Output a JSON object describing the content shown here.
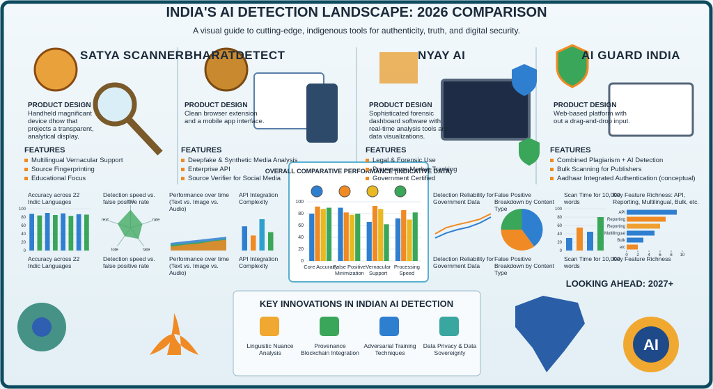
{
  "header": {
    "title": "INDIA'S AI DETECTION LANDSCAPE: 2026 COMPARISON",
    "subtitle": "A visual guide to cutting-edge, indigenous tools for authenticity, truth, and digital security."
  },
  "products": [
    {
      "name": "SATYA SCANNER",
      "design_label": "PRODUCT DESIGN",
      "design": "Handheld magnificant device dhow that projects a transparent, analytical display.",
      "features_label": "FEATURES",
      "features": [
        "Multilingual Vernacular Support",
        "Source Fingerprinting",
        "Educational Focus"
      ]
    },
    {
      "name": "BHARATDETECT",
      "design_label": "PRODUCT DESIGN",
      "design": "Clean browser extension and a mobile app interface.",
      "features_label": "FEATURES",
      "features": [
        "Deepfake & Synthetic Media Analysis",
        "Enterprise API",
        "Source Verifier for Social Media"
      ]
    },
    {
      "name": "NYAY AI",
      "design_label": "PRODUCT DESIGN",
      "design": "Sophisticated forensic dashboard software with real-time analysis tools and data visualizations.",
      "features_label": "FEATURES",
      "features": [
        "Legal & Forensic Use",
        "Provenance Marker Tracking",
        "Government Certified"
      ]
    },
    {
      "name": "AI GUARD INDIA",
      "design_label": "PRODUCT DESIGN",
      "design": "Web-based platform with out a drag-and-drop input.",
      "features_label": "FEATURES",
      "features": [
        "Combined Plagiarism + AI Detection",
        "Bulk Scanning for Publishers",
        "Aadhaar Integrated Authentication (conceptual)"
      ]
    }
  ],
  "mini_charts": [
    {
      "type": "bar",
      "title": "Accuracy across 22 Indic Languages",
      "caption": "Accuracy across 22 Indic Languages",
      "values": [
        88,
        84,
        90,
        85,
        89,
        83,
        87,
        86
      ],
      "colors": [
        "#2f7fd0",
        "#3aa65a"
      ],
      "ylim": [
        0,
        100
      ],
      "yticks": [
        0,
        20,
        40,
        60,
        80,
        100
      ]
    },
    {
      "type": "radar",
      "title": "Detection speed vs. false positive rate",
      "caption": "Detection speed vs. false positive rate",
      "axes": [
        "rost",
        "rate",
        "rate",
        "lote",
        "rext"
      ],
      "values": [
        0.8,
        0.55,
        0.6,
        0.45,
        0.6
      ],
      "color": "#3aa65a"
    },
    {
      "type": "area",
      "title": "Performance over time (Text vs. Image vs. Audio)",
      "caption": "Performance over time (Text vs. Image vs. Audio)",
      "ylim": [
        0,
        100
      ],
      "series": [
        {
          "color": "#2f7fd0",
          "values": [
            20,
            24,
            28,
            32,
            36
          ]
        },
        {
          "color": "#3aa65a",
          "values": [
            15,
            18,
            22,
            26,
            30
          ]
        },
        {
          "color": "#f08a24",
          "values": [
            10,
            15,
            18,
            24,
            28
          ]
        }
      ]
    },
    {
      "type": "bar",
      "title": "API Integration Complexity",
      "caption": "API Integration Complexity",
      "values": [
        58,
        36,
        75,
        44
      ],
      "colors": [
        "#2f7fd0",
        "#f08a24",
        "#2f9fd0",
        "#3aa65a"
      ],
      "ylim": [
        0,
        100
      ]
    },
    {
      "type": "line",
      "title": "Detection Reliability for Government Data",
      "caption": "Detection Reliability for Government Data",
      "ylim": [
        0,
        100
      ],
      "series": [
        {
          "color": "#f08a24",
          "values": [
            40,
            55,
            62,
            68,
            75,
            88
          ]
        },
        {
          "color": "#2f7fd0",
          "values": [
            30,
            42,
            50,
            56,
            66,
            80
          ]
        }
      ]
    },
    {
      "type": "pie",
      "title": "False Positive Breakdown by Content Type",
      "caption": "False Positive Breakdown by Content Type",
      "values": [
        40,
        35,
        25
      ],
      "colors": [
        "#2f7fd0",
        "#f08a24",
        "#3aa65a"
      ]
    },
    {
      "type": "bar",
      "title": "Scan Time for 10,000 words",
      "caption": "Scan Time for 10,000 words",
      "values": [
        30,
        55,
        45,
        80
      ],
      "colors": [
        "#2f7fd0",
        "#f08a24",
        "#2f7fd0",
        "#3aa65a"
      ],
      "ylim": [
        0,
        100
      ],
      "yticks": [
        0,
        20,
        40,
        60,
        80,
        100
      ]
    },
    {
      "type": "hbar",
      "title": "Key Feature Richness: API, Reporting, Multilingual, Bulk, etc.",
      "caption": "Key Feature Richness",
      "categories": [
        "API",
        "Reporting",
        "Reporting",
        "Multilingual",
        "Bulk",
        "etc"
      ],
      "values": [
        9,
        7,
        6,
        5,
        3,
        2
      ],
      "colors": [
        "#2f7fd0",
        "#f08a24",
        "#f0a030",
        "#2f7fd0",
        "#2f7fd0",
        "#f08a24"
      ],
      "xlim": [
        0,
        10
      ],
      "xticks": [
        0,
        2,
        4,
        6,
        8,
        10
      ]
    }
  ],
  "comparison": {
    "type": "bar",
    "title": "OVERALL COMPARATIVE PERFORMANCE (INDICATIVE DATA)",
    "categories": [
      "Core Accuracy",
      "False Positive Minimization",
      "Vernacular Support",
      "Processing Speed"
    ],
    "ylim": [
      0,
      100
    ],
    "yticks": [
      0,
      20,
      40,
      60,
      80,
      100
    ],
    "series": [
      {
        "color": "#2f7fd0",
        "values": [
          80,
          90,
          66,
          72
        ]
      },
      {
        "color": "#f08a24",
        "values": [
          92,
          82,
          93,
          86
        ]
      },
      {
        "color": "#e8b923",
        "values": [
          88,
          78,
          88,
          70
        ]
      },
      {
        "color": "#3aa65a",
        "values": [
          90,
          80,
          62,
          82
        ]
      }
    ]
  },
  "innovations": {
    "title": "KEY INNOVATIONS IN INDIAN AI DETECTION",
    "items": [
      "Linguistic Nuance Analysis",
      "Provenance Blockchain Integration",
      "Adversarial Training Techniques",
      "Data Privacy & Data Sovereignty"
    ]
  },
  "looking_ahead": {
    "title": "LOOKING AHEAD: 2027+",
    "badge": "AI"
  }
}
